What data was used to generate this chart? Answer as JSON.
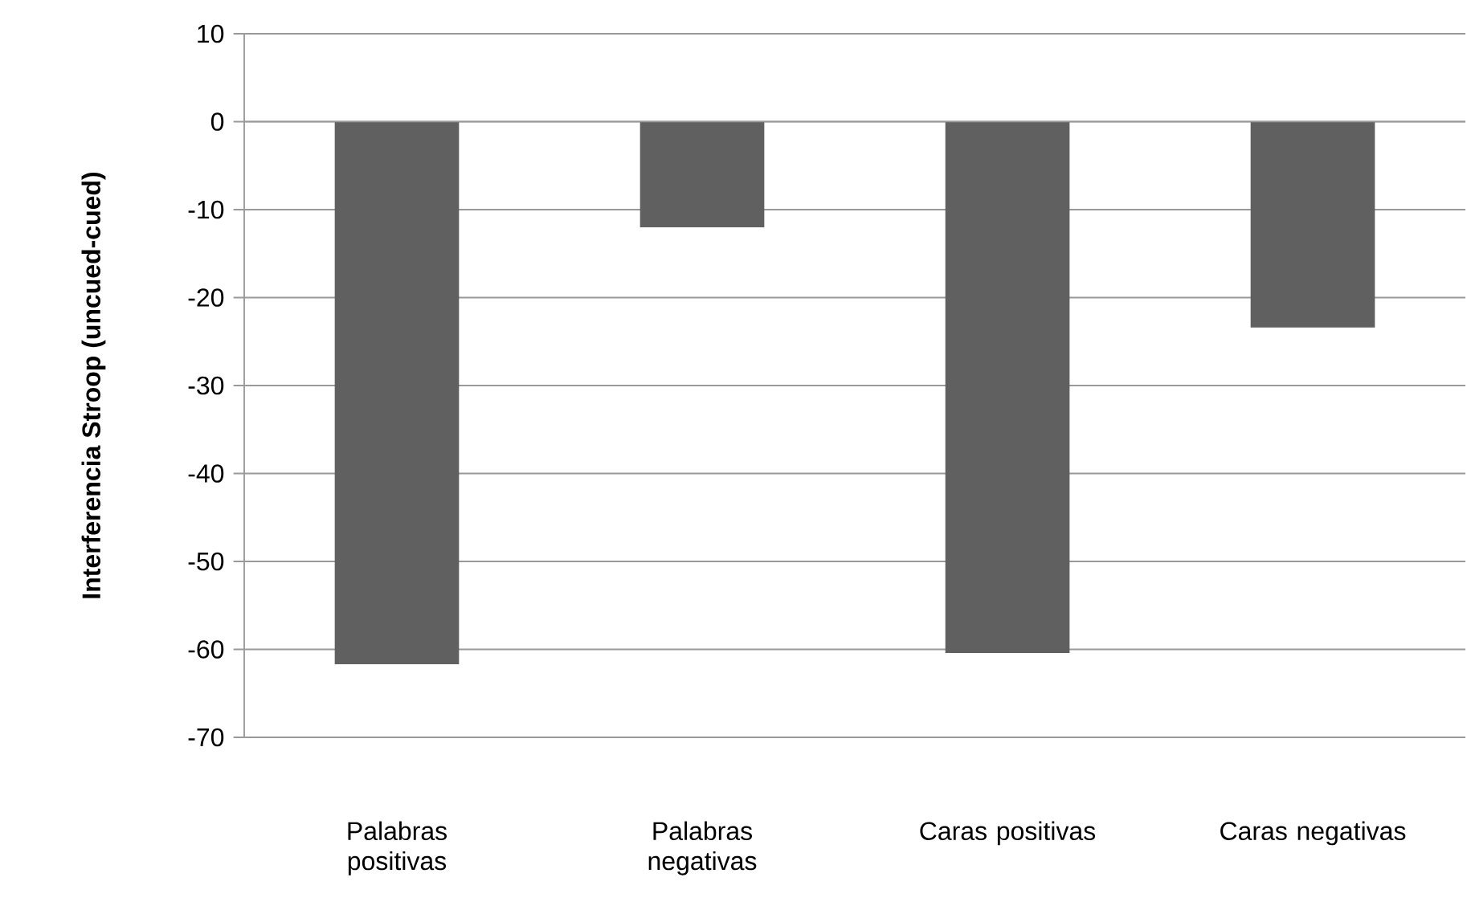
{
  "chart_data": {
    "type": "bar",
    "ylabel": "Interferencia Stroop  (uncued-cued)",
    "categories": [
      "Palabras positivas",
      "Palabras negativas",
      "Caras positivas",
      "Caras negativas"
    ],
    "values": [
      -61.7,
      -12.0,
      -60.4,
      -23.4
    ],
    "color": "#606060",
    "ylim": [
      -70,
      10
    ],
    "yticks": [
      -70,
      -60,
      -50,
      -40,
      -30,
      -20,
      -10,
      0,
      10
    ],
    "grid": "y"
  }
}
